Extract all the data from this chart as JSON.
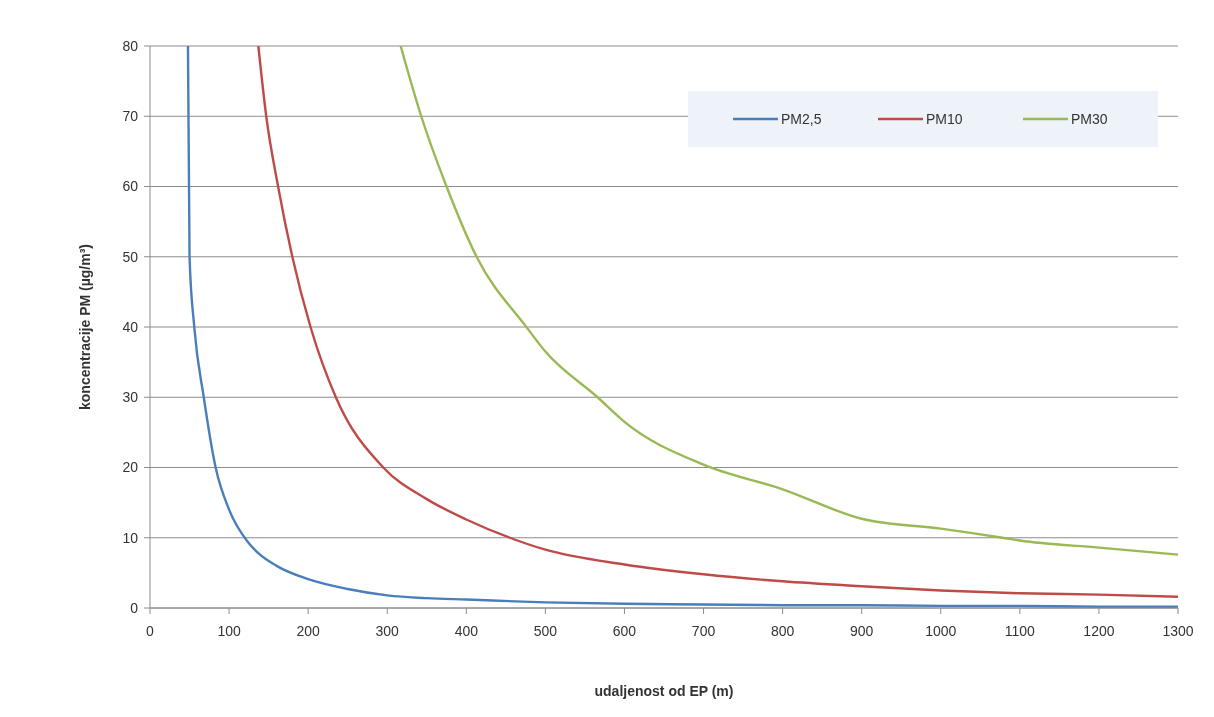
{
  "chart_data": {
    "type": "line",
    "xlabel": "udaljenost od EP  (m)",
    "ylabel": "koncentracije PM  (µg/m³)",
    "xlim": [
      0,
      1300
    ],
    "ylim": [
      0,
      80
    ],
    "xticks": [
      0,
      100,
      200,
      300,
      400,
      500,
      600,
      700,
      800,
      900,
      1000,
      1100,
      1200,
      1300
    ],
    "yticks": [
      0,
      10,
      20,
      30,
      40,
      50,
      60,
      70,
      80
    ],
    "grid": "y",
    "legend": "top right",
    "marker": "none",
    "line_style": "solid",
    "series": [
      {
        "name": "PM2,5",
        "color": "#4a7ebb",
        "x": [
          48,
          50,
          56,
          68,
          83,
          100,
          123,
          137,
          160,
          200,
          250,
          300,
          350,
          400,
          500,
          600,
          700,
          800,
          900,
          1000,
          1100,
          1200,
          1300
        ],
        "values": [
          80,
          50,
          40,
          30,
          20,
          14,
          9.5,
          7.8,
          6,
          4.1,
          2.7,
          1.8,
          1.4,
          1.2,
          0.8,
          0.6,
          0.5,
          0.4,
          0.4,
          0.3,
          0.3,
          0.2,
          0.2
        ]
      },
      {
        "name": "PM10",
        "color": "#be4b48",
        "x": [
          137,
          147,
          162,
          180,
          203,
          235,
          295,
          350,
          400,
          455,
          500,
          600,
          700,
          800,
          900,
          1000,
          1100,
          1200,
          1300
        ],
        "values": [
          80,
          70,
          60,
          50,
          40,
          30,
          20,
          15.5,
          12.6,
          10,
          8.3,
          6.2,
          4.8,
          3.8,
          3.1,
          2.5,
          2.1,
          1.9,
          1.6
        ]
      },
      {
        "name": "PM30",
        "color": "#98b954",
        "x": [
          317,
          343,
          375,
          413,
          476,
          500,
          566,
          600,
          700,
          800,
          900,
          1000,
          1078,
          1100,
          1200,
          1300
        ],
        "values": [
          80,
          70,
          60,
          50,
          40,
          36.5,
          30,
          26.5,
          20.4,
          16.9,
          12.7,
          11.3,
          10,
          9.6,
          8.6,
          7.6
        ]
      }
    ]
  }
}
